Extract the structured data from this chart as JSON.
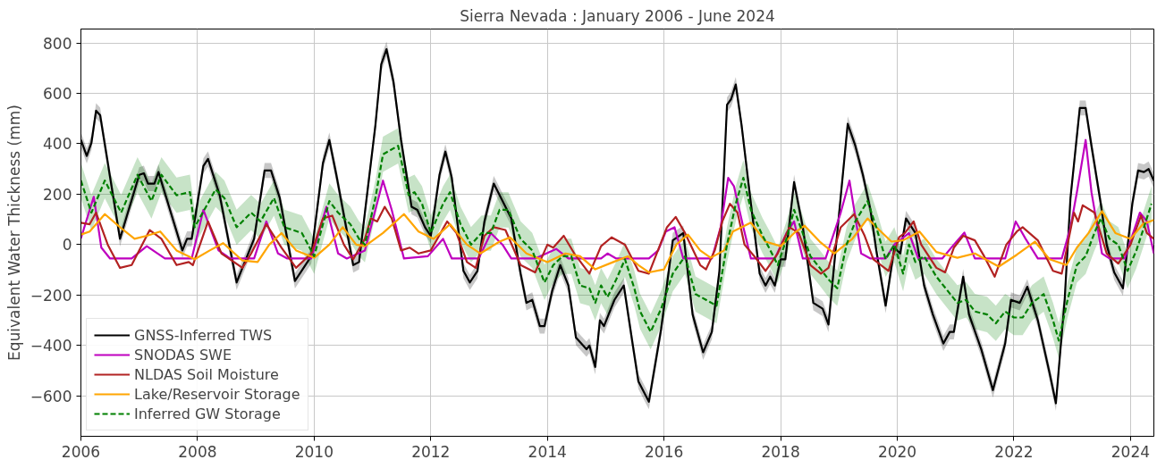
{
  "chart_data": {
    "type": "line",
    "title": "Sierra Nevada : January 2006 - June 2024",
    "ylabel": "Equivalent Water Thickness (mm)",
    "xlim": [
      2006,
      2024.4
    ],
    "ylim": [
      -760,
      855
    ],
    "xticks": [
      2006,
      2008,
      2010,
      2012,
      2014,
      2016,
      2018,
      2020,
      2022,
      2024
    ],
    "yticks": [
      -600,
      -400,
      -200,
      0,
      200,
      400,
      600,
      800
    ],
    "grid": true,
    "legend": "bottom left",
    "series": [
      {
        "name": "GNSS-Inferred TWS",
        "color": "#000000",
        "x": [
          2006.0,
          2006.1,
          2006.18,
          2006.26,
          2006.33,
          2006.67,
          2007.0,
          2007.08,
          2007.15,
          2007.26,
          2007.33,
          2007.74,
          2007.82,
          2007.9,
          2008.1,
          2008.18,
          2008.38,
          2008.67,
          2008.97,
          2009.15,
          2009.26,
          2009.41,
          2009.67,
          2009.95,
          2010.15,
          2010.26,
          2010.38,
          2010.67,
          2010.77,
          2010.87,
          2011.05,
          2011.15,
          2011.24,
          2011.36,
          2011.49,
          2011.67,
          2011.77,
          2011.9,
          2012.0,
          2012.15,
          2012.25,
          2012.36,
          2012.56,
          2012.67,
          2012.8,
          2012.92,
          2013.08,
          2013.23,
          2013.38,
          2013.54,
          2013.64,
          2013.74,
          2013.87,
          2013.95,
          2014.08,
          2014.22,
          2014.36,
          2014.49,
          2014.67,
          2014.72,
          2014.82,
          2014.9,
          2014.97,
          2015.15,
          2015.31,
          2015.46,
          2015.56,
          2015.74,
          2015.95,
          2016.15,
          2016.33,
          2016.49,
          2016.67,
          2016.82,
          2016.95,
          2017.08,
          2017.15,
          2017.23,
          2017.33,
          2017.49,
          2017.64,
          2017.74,
          2017.82,
          2017.9,
          2018.0,
          2018.08,
          2018.23,
          2018.38,
          2018.56,
          2018.72,
          2018.82,
          2018.97,
          2019.15,
          2019.28,
          2019.41,
          2019.54,
          2019.64,
          2019.8,
          2019.95,
          2020.05,
          2020.15,
          2020.31,
          2020.46,
          2020.61,
          2020.79,
          2020.9,
          2020.97,
          2021.13,
          2021.23,
          2021.44,
          2021.64,
          2021.85,
          2021.95,
          2022.1,
          2022.23,
          2022.41,
          2022.61,
          2022.72,
          2022.87,
          2022.97,
          2023.13,
          2023.23,
          2023.33,
          2023.49,
          2023.59,
          2023.72,
          2023.87,
          2024.03,
          2024.13,
          2024.23,
          2024.31,
          2024.4
        ],
        "values": [
          415,
          352,
          404,
          531,
          513,
          23,
          277,
          283,
          242,
          242,
          288,
          -23,
          23,
          23,
          312,
          340,
          196,
          -150,
          23,
          294,
          294,
          185,
          -144,
          -46,
          323,
          415,
          277,
          -81,
          -69,
          127,
          473,
          715,
          775,
          646,
          415,
          150,
          138,
          69,
          35,
          277,
          369,
          265,
          -104,
          -150,
          -104,
          92,
          242,
          173,
          104,
          -115,
          -231,
          -219,
          -323,
          -323,
          -185,
          -81,
          -162,
          -369,
          -415,
          -400,
          -485,
          -300,
          -323,
          -219,
          -162,
          -392,
          -542,
          -623,
          -335,
          17,
          46,
          -277,
          -427,
          -346,
          -104,
          554,
          577,
          635,
          473,
          162,
          -115,
          -162,
          -127,
          -162,
          -58,
          -58,
          248,
          69,
          -231,
          -254,
          -317,
          46,
          479,
          392,
          277,
          138,
          -23,
          -242,
          -12,
          -35,
          104,
          46,
          -162,
          -277,
          -392,
          -346,
          -346,
          -127,
          -277,
          -415,
          -577,
          -392,
          -219,
          -231,
          -167,
          -300,
          -508,
          -629,
          -219,
          185,
          542,
          542,
          392,
          162,
          0,
          -110,
          -173,
          162,
          294,
          288,
          300,
          254
        ],
        "lower": [
          385,
          322,
          374,
          501,
          483,
          -7,
          247,
          253,
          212,
          212,
          258,
          -53,
          -7,
          -7,
          282,
          310,
          166,
          -180,
          -7,
          264,
          264,
          155,
          -174,
          -76,
          293,
          385,
          247,
          -111,
          -99,
          97,
          443,
          685,
          745,
          616,
          385,
          120,
          108,
          39,
          5,
          247,
          339,
          235,
          -134,
          -180,
          -134,
          62,
          212,
          143,
          74,
          -145,
          -261,
          -249,
          -353,
          -353,
          -215,
          -111,
          -192,
          -399,
          -445,
          -430,
          -515,
          -330,
          -353,
          -249,
          -192,
          -422,
          -572,
          -653,
          -365,
          -13,
          16,
          -307,
          -457,
          -376,
          -134,
          524,
          547,
          605,
          443,
          132,
          -145,
          -192,
          -157,
          -192,
          -88,
          -88,
          218,
          39,
          -261,
          -284,
          -347,
          16,
          449,
          362,
          247,
          108,
          -53,
          -272,
          -42,
          -65,
          74,
          16,
          -192,
          -307,
          -422,
          -376,
          -376,
          -157,
          -307,
          -445,
          -607,
          -422,
          -249,
          -261,
          -197,
          -330,
          -538,
          -659,
          -249,
          155,
          512,
          512,
          362,
          132,
          -30,
          -140,
          -203,
          132,
          264,
          258,
          270,
          224
        ],
        "upper": [
          445,
          382,
          434,
          561,
          543,
          53,
          307,
          313,
          272,
          272,
          318,
          7,
          53,
          53,
          342,
          370,
          226,
          -120,
          53,
          324,
          324,
          215,
          -114,
          -16,
          353,
          445,
          307,
          -51,
          -39,
          157,
          503,
          745,
          805,
          676,
          445,
          180,
          168,
          99,
          65,
          307,
          399,
          295,
          -74,
          -120,
          -74,
          122,
          272,
          203,
          134,
          -85,
          -201,
          -189,
          -293,
          -293,
          -155,
          -51,
          -132,
          -339,
          -385,
          -370,
          -455,
          -270,
          -293,
          -189,
          -132,
          -362,
          -512,
          -593,
          -305,
          47,
          76,
          -247,
          -397,
          -316,
          -74,
          584,
          607,
          665,
          503,
          192,
          -85,
          -132,
          -97,
          -132,
          -28,
          -28,
          278,
          99,
          -201,
          -224,
          -287,
          76,
          509,
          422,
          307,
          168,
          7,
          -212,
          18,
          -5,
          134,
          76,
          -132,
          -247,
          -362,
          -316,
          -316,
          -97,
          -247,
          -385,
          -547,
          -362,
          -189,
          -201,
          -137,
          -270,
          -478,
          -599,
          -189,
          215,
          572,
          572,
          422,
          192,
          30,
          -80,
          -143,
          192,
          324,
          318,
          330,
          284
        ]
      },
      {
        "name": "SNODAS SWE",
        "color": "#bf00bf",
        "x": [
          2006.0,
          2006.22,
          2006.35,
          2006.5,
          2006.87,
          2007.13,
          2007.44,
          2007.9,
          2008.1,
          2008.36,
          2008.56,
          2008.97,
          2009.18,
          2009.38,
          2009.54,
          2009.95,
          2010.21,
          2010.41,
          2010.56,
          2010.87,
          2011.18,
          2011.33,
          2011.54,
          2011.95,
          2012.21,
          2012.36,
          2012.82,
          2013.03,
          2013.23,
          2013.38,
          2013.79,
          2014.15,
          2014.36,
          2014.92,
          2015.03,
          2015.18,
          2015.74,
          2015.9,
          2016.03,
          2016.18,
          2016.33,
          2016.82,
          2016.97,
          2017.1,
          2017.2,
          2017.36,
          2017.49,
          2017.9,
          2018.1,
          2018.23,
          2018.38,
          2018.77,
          2019.03,
          2019.18,
          2019.38,
          2019.54,
          2019.8,
          2019.95,
          2020.2,
          2020.36,
          2020.77,
          2020.97,
          2021.15,
          2021.33,
          2021.85,
          2022.03,
          2022.2,
          2022.41,
          2022.82,
          2022.97,
          2023.08,
          2023.23,
          2023.33,
          2023.51,
          2023.64,
          2023.9,
          2024.16,
          2024.28,
          2024.4
        ],
        "values": [
          25,
          190,
          -12,
          -55,
          -55,
          -6,
          -55,
          -55,
          138,
          -23,
          -55,
          -55,
          92,
          -35,
          -55,
          -55,
          150,
          -35,
          -55,
          -23,
          254,
          138,
          -55,
          -46,
          23,
          -55,
          -55,
          46,
          0,
          -55,
          -55,
          -17,
          -55,
          -55,
          -35,
          -55,
          -55,
          -23,
          52,
          69,
          -55,
          -55,
          69,
          265,
          231,
          69,
          -55,
          -55,
          46,
          92,
          -55,
          -55,
          127,
          254,
          -35,
          -55,
          -55,
          0,
          46,
          -55,
          -55,
          0,
          48,
          -55,
          -55,
          92,
          23,
          -55,
          -55,
          69,
          208,
          415,
          208,
          -35,
          -55,
          -55,
          127,
          92,
          -35
        ]
      },
      {
        "name": "NLDAS Soil Moisture",
        "color": "#b22222",
        "x": [
          2006.0,
          2006.15,
          2006.26,
          2006.46,
          2006.67,
          2006.87,
          2007.18,
          2007.38,
          2007.64,
          2007.85,
          2007.92,
          2008.18,
          2008.41,
          2008.77,
          2008.92,
          2009.18,
          2009.44,
          2009.69,
          2009.95,
          2010.15,
          2010.31,
          2010.51,
          2010.67,
          2010.87,
          2010.97,
          2011.08,
          2011.21,
          2011.33,
          2011.49,
          2011.64,
          2011.79,
          2012.0,
          2012.28,
          2012.44,
          2012.62,
          2012.77,
          2012.92,
          2013.08,
          2013.28,
          2013.54,
          2013.79,
          2014.0,
          2014.1,
          2014.28,
          2014.46,
          2014.72,
          2014.92,
          2015.1,
          2015.33,
          2015.56,
          2015.74,
          2016.05,
          2016.2,
          2016.36,
          2016.62,
          2016.72,
          2016.87,
          2017.0,
          2017.13,
          2017.26,
          2017.38,
          2017.59,
          2017.74,
          2017.95,
          2018.15,
          2018.31,
          2018.51,
          2018.69,
          2018.82,
          2019.03,
          2019.26,
          2019.44,
          2019.59,
          2019.85,
          2020.03,
          2020.13,
          2020.28,
          2020.41,
          2020.67,
          2020.82,
          2020.97,
          2021.13,
          2021.33,
          2021.49,
          2021.67,
          2021.87,
          2022.05,
          2022.15,
          2022.41,
          2022.67,
          2022.82,
          2023.03,
          2023.1,
          2023.18,
          2023.38,
          2023.59,
          2023.79,
          2024.0,
          2024.18,
          2024.28,
          2024.4
        ],
        "values": [
          87,
          81,
          127,
          0,
          -92,
          -81,
          58,
          23,
          -81,
          -69,
          -81,
          92,
          -35,
          -92,
          -35,
          81,
          -12,
          -92,
          -35,
          104,
          115,
          0,
          -58,
          23,
          104,
          92,
          150,
          104,
          -23,
          -12,
          -35,
          -23,
          92,
          46,
          -69,
          -92,
          35,
          69,
          58,
          -81,
          -110,
          0,
          -12,
          35,
          -35,
          -115,
          -6,
          29,
          0,
          -104,
          -115,
          69,
          110,
          46,
          -81,
          -98,
          -23,
          92,
          162,
          127,
          0,
          -58,
          -104,
          -35,
          69,
          46,
          -81,
          -115,
          -92,
          69,
          121,
          35,
          -58,
          -104,
          29,
          46,
          92,
          0,
          -92,
          -110,
          -12,
          35,
          17,
          -46,
          -127,
          0,
          52,
          69,
          17,
          -104,
          -115,
          127,
          92,
          156,
          127,
          -35,
          -75,
          0,
          115,
          46,
          23
        ]
      },
      {
        "name": "Lake/Reservoir Storage",
        "color": "#ffa500",
        "x": [
          2006.0,
          2006.15,
          2006.41,
          2006.67,
          2006.92,
          2007.13,
          2007.36,
          2007.64,
          2007.95,
          2008.21,
          2008.44,
          2008.77,
          2009.03,
          2009.23,
          2009.44,
          2009.69,
          2010.0,
          2010.26,
          2010.49,
          2010.72,
          2010.87,
          2011.18,
          2011.54,
          2011.79,
          2012.05,
          2012.33,
          2012.62,
          2012.85,
          2013.18,
          2013.36,
          2013.64,
          2014.0,
          2014.31,
          2014.56,
          2014.82,
          2015.13,
          2015.38,
          2015.56,
          2015.74,
          2016.0,
          2016.21,
          2016.41,
          2016.62,
          2016.8,
          2017.03,
          2017.18,
          2017.49,
          2017.74,
          2018.0,
          2018.23,
          2018.41,
          2018.67,
          2018.92,
          2019.23,
          2019.49,
          2019.69,
          2019.9,
          2020.1,
          2020.38,
          2020.67,
          2021.03,
          2021.33,
          2021.74,
          2022.05,
          2022.36,
          2022.61,
          2022.9,
          2023.08,
          2023.28,
          2023.51,
          2023.74,
          2024.0,
          2024.21,
          2024.4
        ],
        "values": [
          40,
          52,
          121,
          69,
          23,
          35,
          52,
          -23,
          -58,
          -23,
          6,
          -63,
          -69,
          0,
          46,
          -23,
          -52,
          0,
          69,
          0,
          -6,
          46,
          121,
          52,
          23,
          81,
          0,
          -35,
          12,
          29,
          -35,
          -69,
          -35,
          -46,
          -98,
          -69,
          -46,
          -81,
          -110,
          -98,
          0,
          40,
          -23,
          -52,
          -23,
          52,
          87,
          12,
          -6,
          46,
          75,
          12,
          -35,
          23,
          104,
          58,
          12,
          17,
          52,
          -29,
          -52,
          -35,
          -87,
          -40,
          12,
          -58,
          -81,
          -12,
          46,
          133,
          46,
          23,
          81,
          98
        ]
      },
      {
        "name": "Inferred GW Storage",
        "color": "#008000",
        "line_style": "dashed",
        "x": [
          2006.0,
          2006.18,
          2006.41,
          2006.69,
          2006.97,
          2007.21,
          2007.38,
          2007.64,
          2007.87,
          2007.95,
          2008.31,
          2008.46,
          2008.67,
          2008.92,
          2009.08,
          2009.31,
          2009.49,
          2009.79,
          2010.0,
          2010.26,
          2010.41,
          2010.62,
          2010.77,
          2010.87,
          2011.05,
          2011.18,
          2011.44,
          2011.62,
          2011.72,
          2011.85,
          2012.0,
          2012.21,
          2012.33,
          2012.51,
          2012.69,
          2012.87,
          2013.03,
          2013.18,
          2013.33,
          2013.54,
          2013.74,
          2013.95,
          2014.1,
          2014.26,
          2014.41,
          2014.56,
          2014.72,
          2014.82,
          2014.92,
          2015.03,
          2015.18,
          2015.33,
          2015.49,
          2015.59,
          2015.77,
          2015.95,
          2016.15,
          2016.36,
          2016.54,
          2016.72,
          2016.9,
          2017.08,
          2017.23,
          2017.36,
          2017.49,
          2017.69,
          2017.8,
          2017.95,
          2018.1,
          2018.23,
          2018.36,
          2018.51,
          2018.67,
          2018.82,
          2018.97,
          2019.13,
          2019.28,
          2019.49,
          2019.64,
          2019.8,
          2019.95,
          2020.1,
          2020.2,
          2020.31,
          2020.46,
          2020.67,
          2020.87,
          2021.03,
          2021.18,
          2021.33,
          2021.54,
          2021.69,
          2021.85,
          2022.0,
          2022.15,
          2022.31,
          2022.51,
          2022.67,
          2022.77,
          2022.92,
          2023.08,
          2023.23,
          2023.38,
          2023.49,
          2023.64,
          2023.79,
          2023.95,
          2024.1,
          2024.23,
          2024.36
        ],
        "values": [
          254,
          127,
          254,
          127,
          277,
          173,
          277,
          196,
          208,
          69,
          219,
          185,
          69,
          127,
          92,
          185,
          69,
          46,
          -46,
          173,
          127,
          81,
          23,
          0,
          185,
          358,
          392,
          196,
          208,
          162,
          46,
          162,
          208,
          81,
          0,
          46,
          46,
          138,
          138,
          23,
          -23,
          -150,
          -81,
          -46,
          -46,
          -162,
          -173,
          -231,
          -162,
          -208,
          -138,
          -58,
          -173,
          -265,
          -346,
          -254,
          -115,
          -46,
          -196,
          -219,
          -242,
          0,
          162,
          265,
          138,
          35,
          -12,
          -81,
          23,
          138,
          58,
          -46,
          -92,
          -138,
          -173,
          0,
          92,
          173,
          69,
          -58,
          0,
          -115,
          0,
          -69,
          -46,
          -127,
          -185,
          -231,
          -219,
          -265,
          -277,
          -312,
          -265,
          -289,
          -289,
          -231,
          -196,
          -300,
          -381,
          -219,
          -81,
          -46,
          46,
          104,
          23,
          0,
          -104,
          -23,
          69,
          162
        ],
        "lower": [
          184,
          57,
          184,
          57,
          207,
          103,
          207,
          126,
          138,
          -1,
          149,
          115,
          -1,
          57,
          22,
          115,
          -1,
          -24,
          -116,
          103,
          57,
          11,
          -47,
          -70,
          115,
          288,
          322,
          126,
          138,
          92,
          -24,
          92,
          138,
          11,
          -70,
          -24,
          -24,
          68,
          68,
          -47,
          -93,
          -220,
          -151,
          -116,
          -116,
          -232,
          -243,
          -301,
          -232,
          -278,
          -208,
          -128,
          -243,
          -335,
          -416,
          -324,
          -185,
          -116,
          -266,
          -289,
          -312,
          -70,
          92,
          195,
          68,
          -35,
          -82,
          -151,
          -47,
          68,
          -12,
          -116,
          -162,
          -208,
          -243,
          -70,
          22,
          103,
          -1,
          -128,
          -70,
          -185,
          -70,
          -139,
          -116,
          -197,
          -255,
          -301,
          -289,
          -335,
          -347,
          -382,
          -335,
          -359,
          -359,
          -301,
          -266,
          -370,
          -451,
          -289,
          -151,
          -116,
          -24,
          34,
          -47,
          -70,
          -174,
          -93,
          -1,
          92
        ],
        "upper": [
          324,
          197,
          324,
          197,
          347,
          243,
          347,
          266,
          278,
          139,
          289,
          255,
          139,
          197,
          162,
          255,
          139,
          116,
          24,
          243,
          197,
          151,
          93,
          70,
          255,
          428,
          462,
          266,
          278,
          232,
          116,
          232,
          278,
          151,
          70,
          116,
          116,
          208,
          208,
          93,
          47,
          -80,
          -11,
          24,
          24,
          -92,
          -103,
          -161,
          -92,
          -138,
          -68,
          12,
          -103,
          -195,
          -276,
          -184,
          -45,
          24,
          -126,
          -149,
          -172,
          70,
          232,
          335,
          208,
          105,
          58,
          -11,
          93,
          208,
          128,
          24,
          -22,
          -68,
          -103,
          70,
          162,
          243,
          139,
          12,
          70,
          -45,
          70,
          1,
          24,
          -57,
          -115,
          -161,
          -149,
          -195,
          -207,
          -242,
          -195,
          -219,
          -219,
          -161,
          -126,
          -230,
          -311,
          -149,
          -11,
          24,
          116,
          174,
          93,
          70,
          -34,
          47,
          139,
          232
        ]
      }
    ]
  }
}
